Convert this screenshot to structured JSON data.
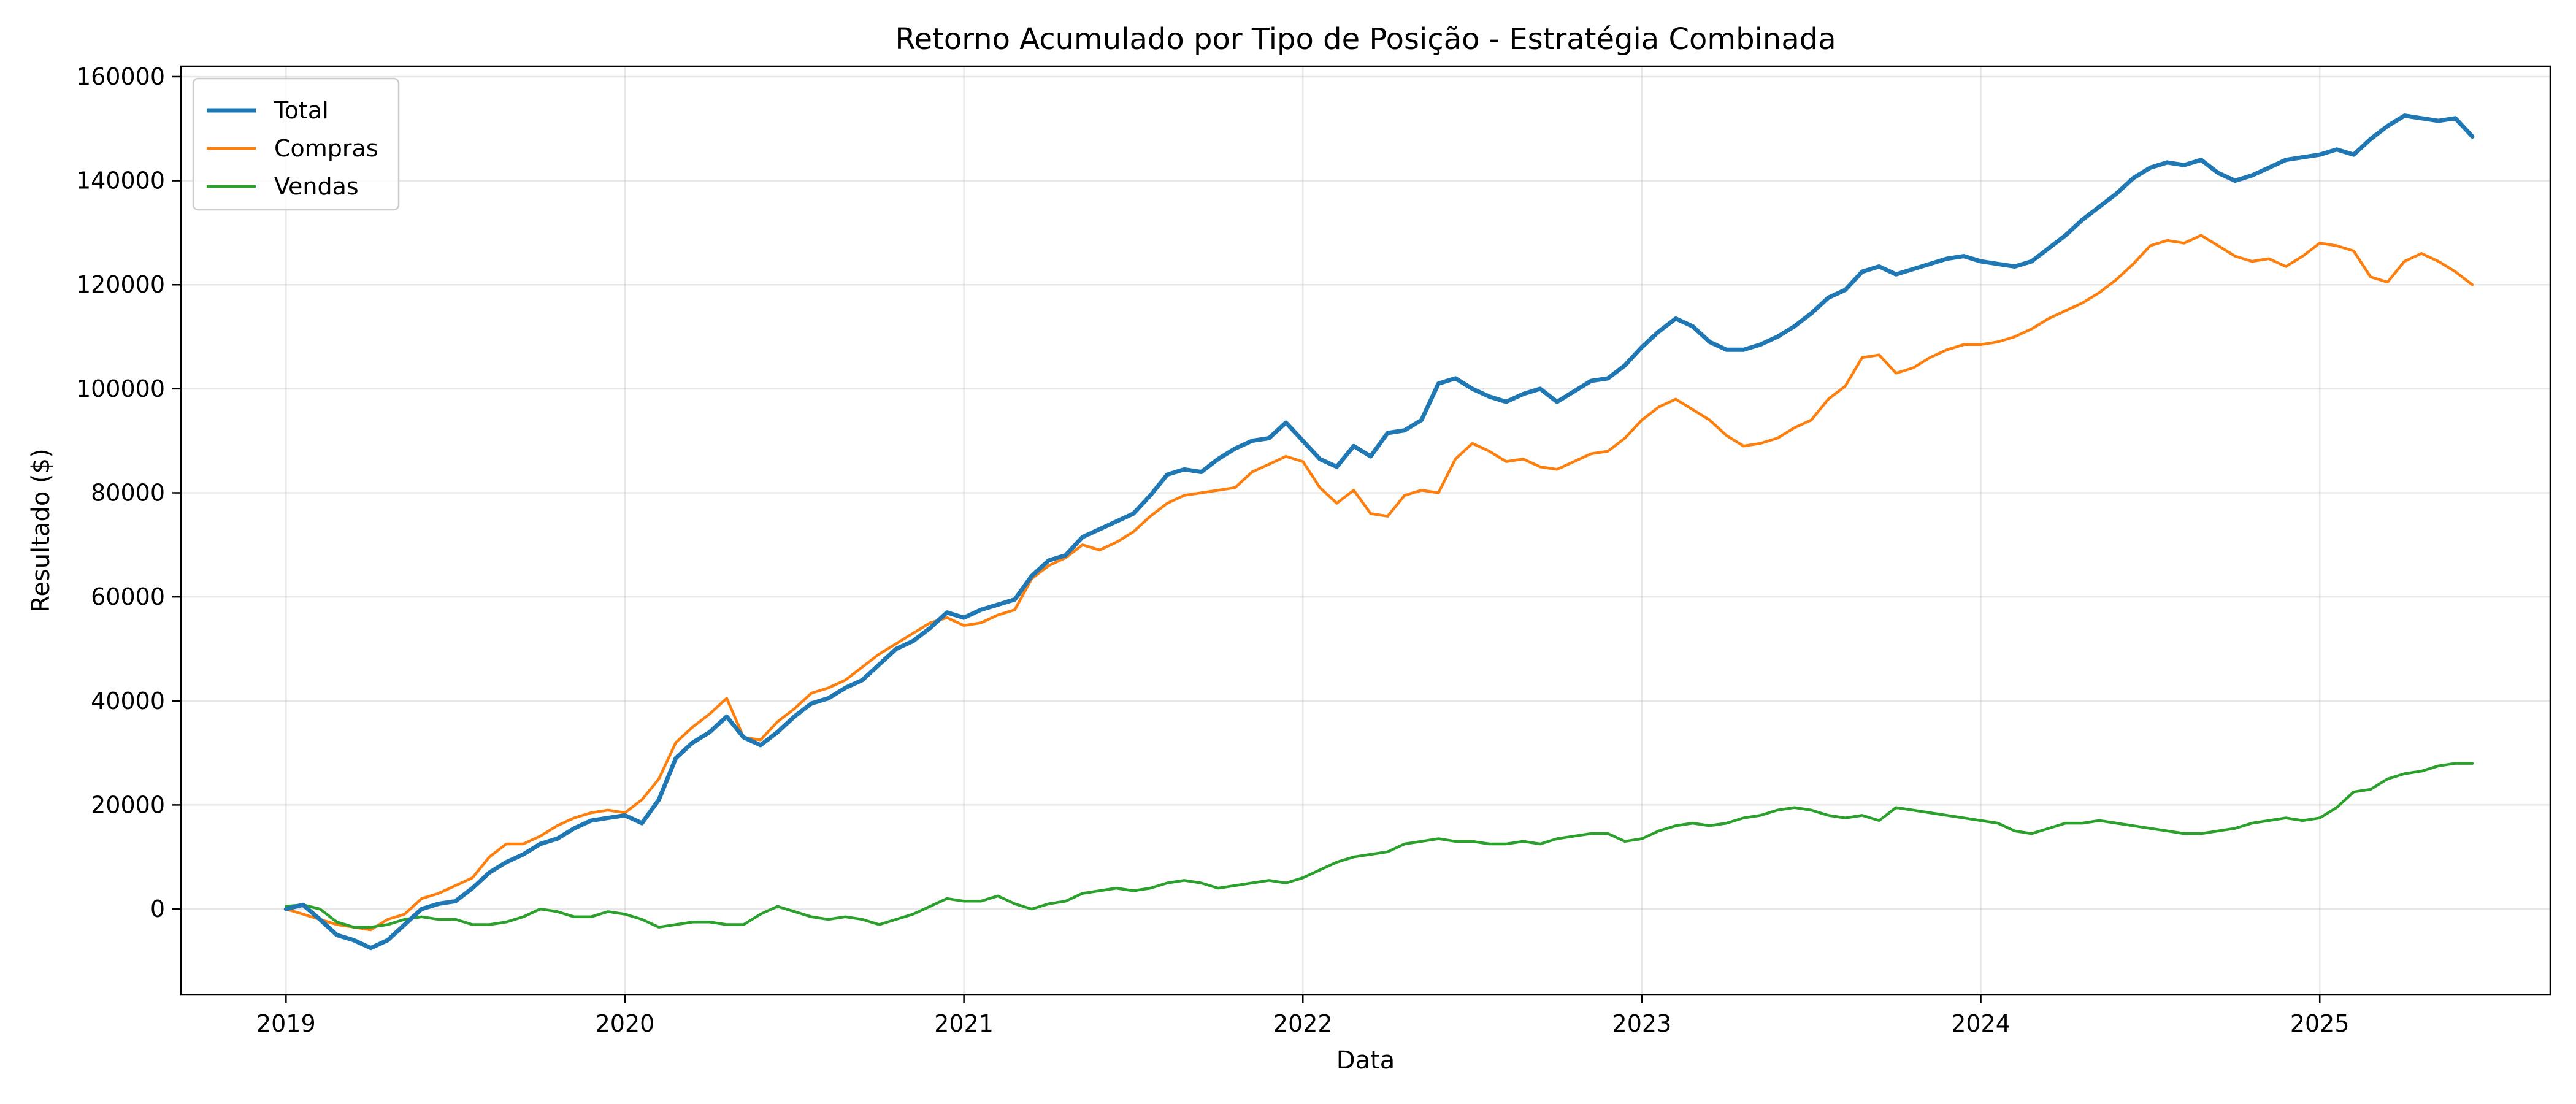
{
  "chart_data": {
    "type": "line",
    "title": "Retorno Acumulado por Tipo de Posição - Estratégia Combinada",
    "xlabel": "Data",
    "ylabel": "Resultado ($)",
    "xlim": [
      2018.69,
      2025.68
    ],
    "ylim": [
      -16500,
      162000
    ],
    "xticks": [
      2019,
      2020,
      2021,
      2022,
      2023,
      2024,
      2025
    ],
    "xtick_labels": [
      "2019",
      "2020",
      "2021",
      "2022",
      "2023",
      "2024",
      "2025"
    ],
    "yticks": [
      0,
      20000,
      40000,
      60000,
      80000,
      100000,
      120000,
      140000,
      160000
    ],
    "ytick_labels": [
      "0",
      "20000",
      "40000",
      "60000",
      "80000",
      "100000",
      "120000",
      "140000",
      "160000"
    ],
    "grid": true,
    "legend_position": "upper-left",
    "series": [
      {
        "name": "Total",
        "color": "#1f77b4",
        "linewidth": 7,
        "x": [
          2019.0,
          2019.05,
          2019.1,
          2019.15,
          2019.2,
          2019.25,
          2019.3,
          2019.35,
          2019.4,
          2019.45,
          2019.5,
          2019.55,
          2019.6,
          2019.65,
          2019.7,
          2019.75,
          2019.8,
          2019.85,
          2019.9,
          2019.95,
          2020.0,
          2020.05,
          2020.1,
          2020.15,
          2020.2,
          2020.25,
          2020.3,
          2020.35,
          2020.4,
          2020.45,
          2020.5,
          2020.55,
          2020.6,
          2020.65,
          2020.7,
          2020.75,
          2020.8,
          2020.85,
          2020.9,
          2020.95,
          2021.0,
          2021.05,
          2021.1,
          2021.15,
          2021.2,
          2021.25,
          2021.3,
          2021.35,
          2021.4,
          2021.45,
          2021.5,
          2021.55,
          2021.6,
          2021.65,
          2021.7,
          2021.75,
          2021.8,
          2021.85,
          2021.9,
          2021.95,
          2022.0,
          2022.05,
          2022.1,
          2022.15,
          2022.2,
          2022.25,
          2022.3,
          2022.35,
          2022.4,
          2022.45,
          2022.5,
          2022.55,
          2022.6,
          2022.65,
          2022.7,
          2022.75,
          2022.8,
          2022.85,
          2022.9,
          2022.95,
          2023.0,
          2023.05,
          2023.1,
          2023.15,
          2023.2,
          2023.25,
          2023.3,
          2023.35,
          2023.4,
          2023.45,
          2023.5,
          2023.55,
          2023.6,
          2023.65,
          2023.7,
          2023.75,
          2023.8,
          2023.85,
          2023.9,
          2023.95,
          2024.0,
          2024.05,
          2024.1,
          2024.15,
          2024.2,
          2024.25,
          2024.3,
          2024.35,
          2024.4,
          2024.45,
          2024.5,
          2024.55,
          2024.6,
          2024.65,
          2024.7,
          2024.75,
          2024.8,
          2024.85,
          2024.9,
          2024.95,
          2025.0,
          2025.05,
          2025.1,
          2025.15,
          2025.2,
          2025.25,
          2025.3,
          2025.35,
          2025.4,
          2025.45
        ],
        "y": [
          0,
          800,
          -2000,
          -5000,
          -6000,
          -7500,
          -6000,
          -3000,
          0,
          1000,
          1500,
          4000,
          7000,
          9000,
          10500,
          12500,
          13500,
          15500,
          17000,
          17500,
          18000,
          16500,
          21000,
          29000,
          32000,
          34000,
          37000,
          33000,
          31500,
          34000,
          37000,
          39500,
          40500,
          42500,
          44000,
          47000,
          50000,
          51500,
          54000,
          57000,
          56000,
          57500,
          58500,
          59500,
          64000,
          67000,
          68000,
          71500,
          73000,
          74500,
          76000,
          79500,
          83500,
          84500,
          84000,
          86500,
          88500,
          90000,
          90500,
          93500,
          90000,
          86500,
          85000,
          89000,
          87000,
          91500,
          92000,
          94000,
          101000,
          102000,
          100000,
          98500,
          97500,
          99000,
          100000,
          97500,
          99500,
          101500,
          102000,
          104500,
          108000,
          111000,
          113500,
          112000,
          109000,
          107500,
          107500,
          108500,
          110000,
          112000,
          114500,
          117500,
          119000,
          122500,
          123500,
          122000,
          123000,
          124000,
          125000,
          125500,
          124500,
          124000,
          123500,
          124500,
          127000,
          129500,
          132500,
          135000,
          137500,
          140500,
          142500,
          143500,
          143000,
          144000,
          141500,
          140000,
          141000,
          142500,
          144000,
          144500,
          145000,
          146000,
          145000,
          148000,
          150500,
          152500,
          152000,
          151500,
          152000,
          148500
        ]
      },
      {
        "name": "Compras",
        "color": "#ff7f0e",
        "linewidth": 4.5,
        "x": [
          2019.0,
          2019.05,
          2019.1,
          2019.15,
          2019.2,
          2019.25,
          2019.3,
          2019.35,
          2019.4,
          2019.45,
          2019.5,
          2019.55,
          2019.6,
          2019.65,
          2019.7,
          2019.75,
          2019.8,
          2019.85,
          2019.9,
          2019.95,
          2020.0,
          2020.05,
          2020.1,
          2020.15,
          2020.2,
          2020.25,
          2020.3,
          2020.35,
          2020.4,
          2020.45,
          2020.5,
          2020.55,
          2020.6,
          2020.65,
          2020.7,
          2020.75,
          2020.8,
          2020.85,
          2020.9,
          2020.95,
          2021.0,
          2021.05,
          2021.1,
          2021.15,
          2021.2,
          2021.25,
          2021.3,
          2021.35,
          2021.4,
          2021.45,
          2021.5,
          2021.55,
          2021.6,
          2021.65,
          2021.7,
          2021.75,
          2021.8,
          2021.85,
          2021.9,
          2021.95,
          2022.0,
          2022.05,
          2022.1,
          2022.15,
          2022.2,
          2022.25,
          2022.3,
          2022.35,
          2022.4,
          2022.45,
          2022.5,
          2022.55,
          2022.6,
          2022.65,
          2022.7,
          2022.75,
          2022.8,
          2022.85,
          2022.9,
          2022.95,
          2023.0,
          2023.05,
          2023.1,
          2023.15,
          2023.2,
          2023.25,
          2023.3,
          2023.35,
          2023.4,
          2023.45,
          2023.5,
          2023.55,
          2023.6,
          2023.65,
          2023.7,
          2023.75,
          2023.8,
          2023.85,
          2023.9,
          2023.95,
          2024.0,
          2024.05,
          2024.1,
          2024.15,
          2024.2,
          2024.25,
          2024.3,
          2024.35,
          2024.4,
          2024.45,
          2024.5,
          2024.55,
          2024.6,
          2024.65,
          2024.7,
          2024.75,
          2024.8,
          2024.85,
          2024.9,
          2024.95,
          2025.0,
          2025.05,
          2025.1,
          2025.15,
          2025.2,
          2025.25,
          2025.3,
          2025.35,
          2025.4,
          2025.45
        ],
        "y": [
          0,
          -1000,
          -2000,
          -3000,
          -3500,
          -4000,
          -2000,
          -1000,
          2000,
          3000,
          4500,
          6000,
          10000,
          12500,
          12500,
          14000,
          16000,
          17500,
          18500,
          19000,
          18500,
          21000,
          25000,
          32000,
          35000,
          37500,
          40500,
          33000,
          32500,
          36000,
          38500,
          41500,
          42500,
          44000,
          46500,
          49000,
          51000,
          53000,
          55000,
          56000,
          54500,
          55000,
          56500,
          57500,
          63500,
          66000,
          67500,
          70000,
          69000,
          70500,
          72500,
          75500,
          78000,
          79500,
          80000,
          80500,
          81000,
          84000,
          85500,
          87000,
          86000,
          81000,
          78000,
          80500,
          76000,
          75500,
          79500,
          80500,
          80000,
          86500,
          89500,
          88000,
          86000,
          86500,
          85000,
          84500,
          86000,
          87500,
          88000,
          90500,
          94000,
          96500,
          98000,
          96000,
          94000,
          91000,
          89000,
          89500,
          90500,
          92500,
          94000,
          98000,
          100500,
          106000,
          106500,
          103000,
          104000,
          106000,
          107500,
          108500,
          108500,
          109000,
          110000,
          111500,
          113500,
          115000,
          116500,
          118500,
          121000,
          124000,
          127500,
          128500,
          128000,
          129500,
          127500,
          125500,
          124500,
          125000,
          123500,
          125500,
          128000,
          127500,
          126500,
          121500,
          120500,
          124500,
          126000,
          124500,
          122500,
          120000
        ]
      },
      {
        "name": "Vendas",
        "color": "#2ca02c",
        "linewidth": 4.5,
        "x": [
          2019.0,
          2019.05,
          2019.1,
          2019.15,
          2019.2,
          2019.25,
          2019.3,
          2019.35,
          2019.4,
          2019.45,
          2019.5,
          2019.55,
          2019.6,
          2019.65,
          2019.7,
          2019.75,
          2019.8,
          2019.85,
          2019.9,
          2019.95,
          2020.0,
          2020.05,
          2020.1,
          2020.15,
          2020.2,
          2020.25,
          2020.3,
          2020.35,
          2020.4,
          2020.45,
          2020.5,
          2020.55,
          2020.6,
          2020.65,
          2020.7,
          2020.75,
          2020.8,
          2020.85,
          2020.9,
          2020.95,
          2021.0,
          2021.05,
          2021.1,
          2021.15,
          2021.2,
          2021.25,
          2021.3,
          2021.35,
          2021.4,
          2021.45,
          2021.5,
          2021.55,
          2021.6,
          2021.65,
          2021.7,
          2021.75,
          2021.8,
          2021.85,
          2021.9,
          2021.95,
          2022.0,
          2022.05,
          2022.1,
          2022.15,
          2022.2,
          2022.25,
          2022.3,
          2022.35,
          2022.4,
          2022.45,
          2022.5,
          2022.55,
          2022.6,
          2022.65,
          2022.7,
          2022.75,
          2022.8,
          2022.85,
          2022.9,
          2022.95,
          2023.0,
          2023.05,
          2023.1,
          2023.15,
          2023.2,
          2023.25,
          2023.3,
          2023.35,
          2023.4,
          2023.45,
          2023.5,
          2023.55,
          2023.6,
          2023.65,
          2023.7,
          2023.75,
          2023.8,
          2023.85,
          2023.9,
          2023.95,
          2024.0,
          2024.05,
          2024.1,
          2024.15,
          2024.2,
          2024.25,
          2024.3,
          2024.35,
          2024.4,
          2024.45,
          2024.5,
          2024.55,
          2024.6,
          2024.65,
          2024.7,
          2024.75,
          2024.8,
          2024.85,
          2024.9,
          2024.95,
          2025.0,
          2025.05,
          2025.1,
          2025.15,
          2025.2,
          2025.25,
          2025.3,
          2025.35,
          2025.4,
          2025.45
        ],
        "y": [
          500,
          800,
          0,
          -2500,
          -3500,
          -3500,
          -3000,
          -2000,
          -1500,
          -2000,
          -2000,
          -3000,
          -3000,
          -2500,
          -1500,
          0,
          -500,
          -1500,
          -1500,
          -500,
          -1000,
          -2000,
          -3500,
          -3000,
          -2500,
          -2500,
          -3000,
          -3000,
          -1000,
          500,
          -500,
          -1500,
          -2000,
          -1500,
          -2000,
          -3000,
          -2000,
          -1000,
          500,
          2000,
          1500,
          1500,
          2500,
          1000,
          0,
          1000,
          1500,
          3000,
          3500,
          4000,
          3500,
          4000,
          5000,
          5500,
          5000,
          4000,
          4500,
          5000,
          5500,
          5000,
          6000,
          7500,
          9000,
          10000,
          10500,
          11000,
          12500,
          13000,
          13500,
          13000,
          13000,
          12500,
          12500,
          13000,
          12500,
          13500,
          14000,
          14500,
          14500,
          13000,
          13500,
          15000,
          16000,
          16500,
          16000,
          16500,
          17500,
          18000,
          19000,
          19500,
          19000,
          18000,
          17500,
          18000,
          17000,
          19500,
          19000,
          18500,
          18000,
          17500,
          17000,
          16500,
          15000,
          14500,
          15500,
          16500,
          16500,
          17000,
          16500,
          16000,
          15500,
          15000,
          14500,
          14500,
          15000,
          15500,
          16500,
          17000,
          17500,
          17000,
          17500,
          19500,
          22500,
          23000,
          25000,
          26000,
          26500,
          27500,
          28000,
          28000
        ]
      }
    ]
  }
}
